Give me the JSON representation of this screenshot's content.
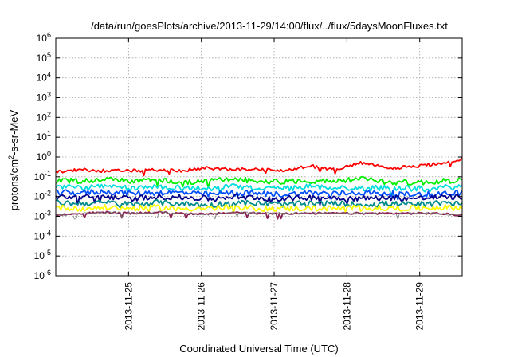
{
  "chart_data": {
    "type": "line",
    "title": "/data/run/goesPlots/archive/2013-11-29/14:00/flux/../flux/5daysMoonFluxes.txt",
    "xlabel": "Coordinated Universal Time (UTC)",
    "ylabel": "protons/cm²-s-sr-MeV",
    "ylabel_parts": {
      "pre": "protons/cm",
      "sup": "2",
      "post": "-s-sr-MeV"
    },
    "yscale": "log",
    "ylim_exponents": [
      -6,
      6
    ],
    "ytick_labels": [
      {
        "base": "10",
        "exp": "-6"
      },
      {
        "base": "10",
        "exp": "-5"
      },
      {
        "base": "10",
        "exp": "-4"
      },
      {
        "base": "10",
        "exp": "-3"
      },
      {
        "base": "10",
        "exp": "-2"
      },
      {
        "base": "10",
        "exp": "-1"
      },
      {
        "base": "10",
        "exp": "0"
      },
      {
        "base": "10",
        "exp": "1"
      },
      {
        "base": "10",
        "exp": "2"
      },
      {
        "base": "10",
        "exp": "3"
      },
      {
        "base": "10",
        "exp": "4"
      },
      {
        "base": "10",
        "exp": "5"
      },
      {
        "base": "10",
        "exp": "6"
      }
    ],
    "xlim": [
      "2013-11-24 00:00",
      "2013-11-29 14:00"
    ],
    "xtick_labels": [
      "2013-11-25",
      "2013-11-26",
      "2013-11-27",
      "2013-11-28",
      "2013-11-29"
    ],
    "grid": true,
    "series": [
      {
        "color": "#ff0000",
        "y_log10": [
          -0.75,
          -0.65,
          -0.7,
          -0.7,
          -0.65,
          -0.7,
          -0.55,
          -0.65,
          -0.6,
          -0.7,
          -0.45,
          -0.65,
          -0.3,
          -0.55,
          -0.5,
          -0.35,
          -0.1
        ]
      },
      {
        "color": "#00ee00",
        "y_log10": [
          -1.2,
          -1.2,
          -1.15,
          -1.2,
          -1.15,
          -1.3,
          -1.2,
          -1.15,
          -1.2,
          -1.25,
          -1.2,
          -1.25,
          -1.1,
          -1.25,
          -1.3,
          -1.25,
          -1.15
        ]
      },
      {
        "color": "#00dddd",
        "y_log10": [
          -1.5,
          -1.55,
          -1.5,
          -1.6,
          -1.5,
          -1.55,
          -1.6,
          -1.5,
          -1.55,
          -1.6,
          -1.5,
          -1.55,
          -1.6,
          -1.55,
          -1.6,
          -1.55,
          -1.5
        ]
      },
      {
        "color": "#0050ff",
        "y_log10": [
          -1.8,
          -1.8,
          -1.75,
          -1.85,
          -1.8,
          -1.8,
          -1.9,
          -1.8,
          -1.85,
          -1.9,
          -1.8,
          -1.85,
          -1.8,
          -1.85,
          -1.9,
          -1.85,
          -1.8
        ]
      },
      {
        "color": "#00008b",
        "y_log10": [
          -2.0,
          -2.05,
          -2.0,
          -2.1,
          -2.0,
          -2.05,
          -2.1,
          -2.0,
          -2.05,
          -2.1,
          -2.05,
          -2.05,
          -2.1,
          -2.05,
          -2.1,
          -2.05,
          -2.0
        ]
      },
      {
        "color": "#008b8b",
        "y_log10": [
          -2.3,
          -2.35,
          -2.3,
          -2.4,
          -2.3,
          -2.35,
          -2.45,
          -2.3,
          -2.35,
          -2.4,
          -2.35,
          -2.35,
          -2.4,
          -2.35,
          -2.4,
          -2.35,
          -2.3
        ]
      },
      {
        "color": "#ffff00",
        "y_log10": [
          -2.55,
          -2.6,
          -2.55,
          -2.6,
          -2.55,
          -2.6,
          -2.6,
          -2.55,
          -2.6,
          -2.6,
          -2.6,
          -2.6,
          -2.55,
          -2.6,
          -2.6,
          -2.55,
          -2.55
        ]
      },
      {
        "color": "#8b2252",
        "y_log10": [
          -2.95,
          -2.85,
          -2.8,
          -2.85,
          -2.8,
          -2.85,
          -2.9,
          -2.8,
          -2.85,
          -2.85,
          -2.85,
          -2.85,
          -2.85,
          -2.85,
          -2.85,
          -2.85,
          -2.95
        ]
      },
      {
        "color": "#7a7a7a",
        "y_log10": [
          -2.95,
          -2.85,
          -2.8,
          -2.85,
          -2.8,
          -2.85,
          -2.9,
          -2.8,
          -2.85,
          -2.85,
          -2.85,
          -2.85,
          -2.85,
          -2.85,
          -2.85,
          -2.85,
          -2.95
        ]
      }
    ]
  }
}
